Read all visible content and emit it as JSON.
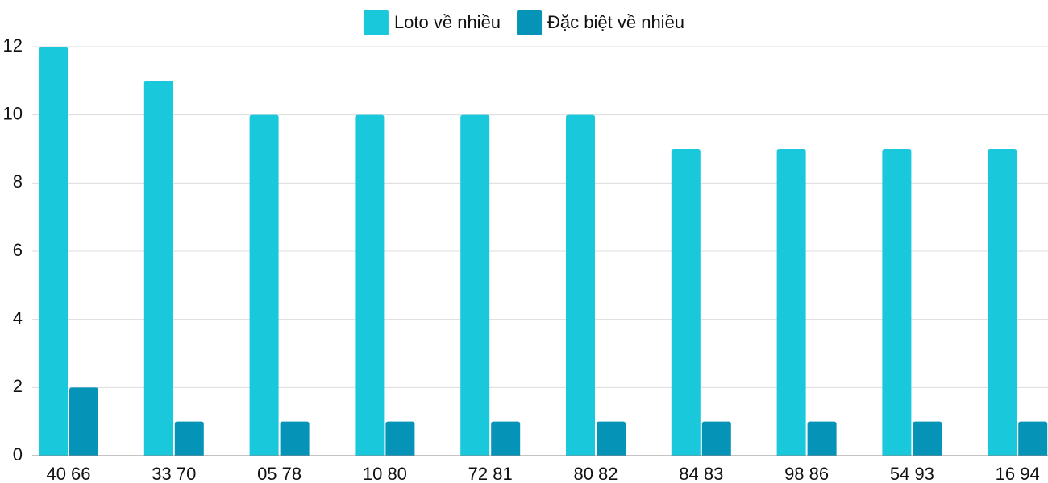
{
  "chart_data": {
    "type": "bar",
    "categories": [
      "40 66",
      "33 70",
      "05 78",
      "10 80",
      "72 81",
      "80 82",
      "84 83",
      "98 86",
      "54 93",
      "16 94"
    ],
    "series": [
      {
        "name": "Loto về nhiều",
        "color": "#1ac8db",
        "values": [
          12,
          11,
          10,
          10,
          10,
          10,
          9,
          9,
          9,
          9
        ]
      },
      {
        "name": "Đặc biệt về nhiều",
        "color": "#0593b8",
        "values": [
          2,
          1,
          1,
          1,
          1,
          1,
          1,
          1,
          1,
          1
        ]
      }
    ],
    "ylim": [
      0,
      12
    ],
    "yticks": [
      0,
      2,
      4,
      6,
      8,
      10,
      12
    ],
    "grid": true,
    "legend": "top"
  }
}
